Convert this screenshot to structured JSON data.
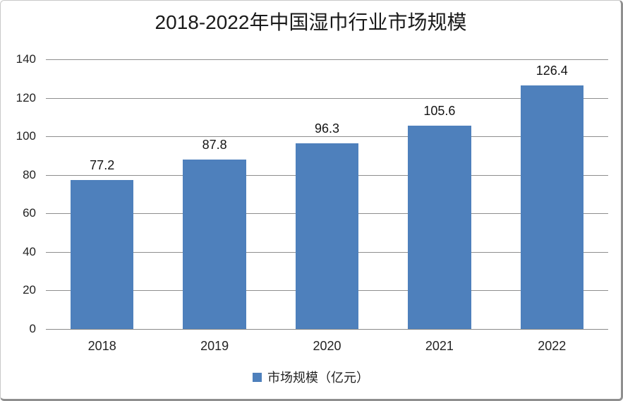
{
  "title": "2018-2022年中国湿巾行业市场规模",
  "legend": {
    "label": "市场规模（亿元）",
    "marker_color": "#4e80bc"
  },
  "chart_data": {
    "type": "bar",
    "title": "2018-2022年中国湿巾行业市场规模",
    "categories": [
      "2018",
      "2019",
      "2020",
      "2021",
      "2022"
    ],
    "values": [
      77.2,
      87.8,
      96.3,
      105.6,
      126.4
    ],
    "value_labels": [
      "77.2",
      "87.8",
      "96.3",
      "105.6",
      "126.4"
    ],
    "series_name": "市场规模（亿元）",
    "xlabel": "",
    "ylabel": "",
    "ylim": [
      0,
      140
    ],
    "yticks": [
      0,
      20,
      40,
      60,
      80,
      100,
      120,
      140
    ],
    "grid": true,
    "legend_position": "bottom",
    "bar_color": "#4e80bc",
    "gridline_color": "#8e8e8e",
    "axis_line_color": "#8a8a8a",
    "text_color": "#232323"
  }
}
